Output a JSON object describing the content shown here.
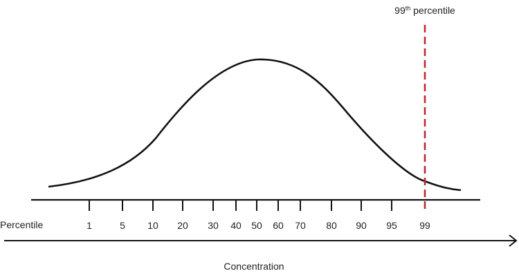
{
  "diagram": {
    "percentile_label": "Percentile",
    "percentile_ticks": [
      "1",
      "5",
      "10",
      "20",
      "30",
      "40",
      "50",
      "60",
      "70",
      "80",
      "90",
      "95",
      "99"
    ],
    "concentration_label": "Concentration",
    "marker": {
      "number": "99",
      "superscript": "th",
      "text": "percentile",
      "percentile_value": "99"
    }
  },
  "colors": {
    "curve": "#111111",
    "axis": "#111111",
    "marker_line": "#c0272d",
    "text": "#222222"
  }
}
